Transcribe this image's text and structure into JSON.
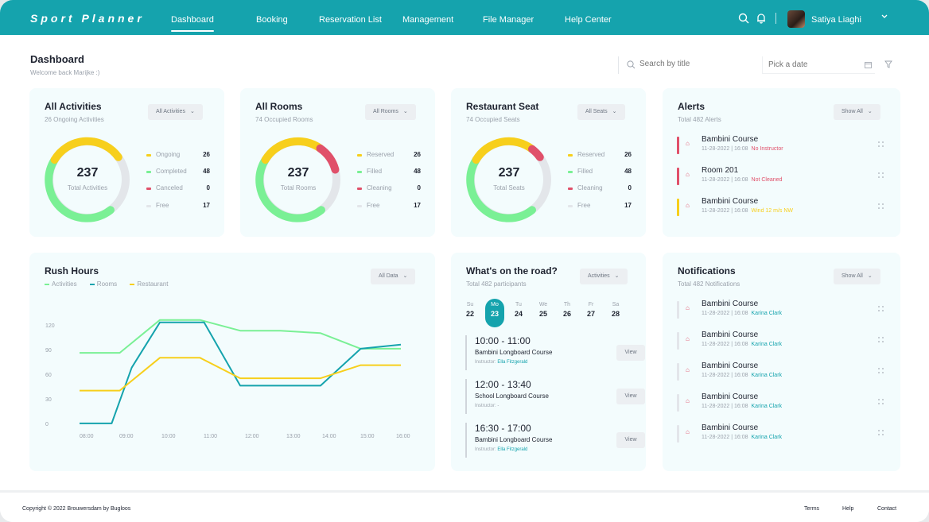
{
  "header": {
    "logo": "Sport Planner",
    "nav": [
      "Dashboard",
      "Booking",
      "Reservation List",
      "Management",
      "File Manager",
      "Help Center"
    ],
    "user_name": "Satiya Liaghi"
  },
  "page": {
    "title": "Dashboard",
    "subtitle": "Welcome back Marijke :)",
    "search_placeholder": "Search by title",
    "date_placeholder": "Pick a date"
  },
  "colors": {
    "brand": "#15a3ad",
    "green": "#7af095",
    "yellow": "#f7cf1c",
    "red": "#e0506a",
    "teal": "#15a3ad"
  },
  "activities": {
    "title": "All Activities",
    "subtitle": "26 Ongoing Activities",
    "dropdown": "All Activities",
    "total": "237",
    "total_label": "Total Activities",
    "legend": [
      {
        "label": "Ongoing",
        "value": "26",
        "color": "#f7cf1c"
      },
      {
        "label": "Completed",
        "value": "48",
        "color": "#7af095"
      },
      {
        "label": "Canceled",
        "value": "0",
        "color": "#e0506a"
      },
      {
        "label": "Free",
        "value": "17",
        "color": "#e3e6ea"
      }
    ]
  },
  "rooms": {
    "title": "All Rooms",
    "subtitle": "74 Occupied Rooms",
    "dropdown": "All Rooms",
    "total": "237",
    "total_label": "Total Rooms",
    "legend": [
      {
        "label": "Reserved",
        "value": "26",
        "color": "#f7cf1c"
      },
      {
        "label": "Filled",
        "value": "48",
        "color": "#7af095"
      },
      {
        "label": "Cleaning",
        "value": "0",
        "color": "#e0506a"
      },
      {
        "label": "Free",
        "value": "17",
        "color": "#e3e6ea"
      }
    ]
  },
  "seats": {
    "title": "Restaurant Seat",
    "subtitle": "74 Occupied Seats",
    "dropdown": "All Seats",
    "total": "237",
    "total_label": "Total Seats",
    "legend": [
      {
        "label": "Reserved",
        "value": "26",
        "color": "#f7cf1c"
      },
      {
        "label": "Filled",
        "value": "48",
        "color": "#7af095"
      },
      {
        "label": "Cleaning",
        "value": "0",
        "color": "#e0506a"
      },
      {
        "label": "Free",
        "value": "17",
        "color": "#e3e6ea"
      }
    ]
  },
  "alerts": {
    "title": "Alerts",
    "subtitle": "Total 482 Alerts",
    "dropdown": "Show All",
    "items": [
      {
        "title": "Bambini Course",
        "date": "11-28-2022 | 16:08",
        "status": "No Instructor",
        "color": "#e0506a"
      },
      {
        "title": "Room 201",
        "date": "11-28-2022 | 16:08",
        "status": "Not Cleaned",
        "color": "#e0506a"
      },
      {
        "title": "Bambini Course",
        "date": "11-28-2022 | 16:08",
        "status": "Wind 12 m/s NW",
        "color": "#f7cf1c"
      }
    ]
  },
  "rush": {
    "title": "Rush Hours",
    "dropdown": "All Data",
    "legend": [
      "Activities",
      "Rooms",
      "Restaurant"
    ]
  },
  "chart_data": {
    "type": "line",
    "title": "Rush Hours",
    "x": [
      "08:00",
      "09:00",
      "10:00",
      "11:00",
      "12:00",
      "13:00",
      "14:00",
      "15:00",
      "16:00"
    ],
    "yticks": [
      "120",
      "90",
      "60",
      "30",
      "0"
    ],
    "ylim": [
      0,
      130
    ],
    "series": [
      {
        "name": "Activities",
        "color": "#7af095",
        "points": [
          [
            7.8,
            88
          ],
          [
            8.8,
            88
          ],
          [
            9.8,
            128
          ],
          [
            10.8,
            128
          ],
          [
            11.8,
            115
          ],
          [
            12.8,
            115
          ],
          [
            13.8,
            112
          ],
          [
            14.8,
            93
          ],
          [
            15.8,
            93
          ]
        ]
      },
      {
        "name": "Rooms",
        "color": "#15a3ad",
        "points": [
          [
            7.8,
            2
          ],
          [
            8.6,
            2
          ],
          [
            9.1,
            70
          ],
          [
            9.8,
            125
          ],
          [
            10.9,
            125
          ],
          [
            11.8,
            48
          ],
          [
            12.8,
            48
          ],
          [
            13.8,
            48
          ],
          [
            14.8,
            93
          ],
          [
            15.8,
            98
          ]
        ]
      },
      {
        "name": "Restaurant",
        "color": "#f7cf1c",
        "points": [
          [
            7.8,
            42
          ],
          [
            8.8,
            42
          ],
          [
            9.8,
            82
          ],
          [
            10.8,
            82
          ],
          [
            11.8,
            57
          ],
          [
            12.8,
            57
          ],
          [
            13.8,
            57
          ],
          [
            14.8,
            73
          ],
          [
            15.8,
            73
          ]
        ]
      }
    ]
  },
  "road": {
    "title": "What's on the road?",
    "subtitle": "Total 482 participants",
    "dropdown": "Activities",
    "days": [
      {
        "name": "Su",
        "num": "22"
      },
      {
        "name": "Mo",
        "num": "23"
      },
      {
        "name": "Tu",
        "num": "24"
      },
      {
        "name": "We",
        "num": "25"
      },
      {
        "name": "Th",
        "num": "26"
      },
      {
        "name": "Fr",
        "num": "27"
      },
      {
        "name": "Sa",
        "num": "28"
      }
    ],
    "events": [
      {
        "time": "10:00 - 11:00",
        "name": "Bambini Longboard Course",
        "instructor_label": "Instructor:",
        "instructor": "Ella Fitzgerald",
        "button": "View"
      },
      {
        "time": "12:00 - 13:40",
        "name": "School Longboard Course",
        "instructor_label": "Instructor:",
        "instructor": "-",
        "button": "View"
      },
      {
        "time": "16:30 - 17:00",
        "name": "Bambini Longboard Course",
        "instructor_label": "Instructor:",
        "instructor": "Ella Fitzgerald",
        "button": "View"
      }
    ]
  },
  "notifications": {
    "title": "Notifications",
    "subtitle": "Total 482 Notifications",
    "dropdown": "Show All",
    "items": [
      {
        "title": "Bambini Course",
        "date": "11-28-2022 | 16:08",
        "person": "Karina Clark"
      },
      {
        "title": "Bambini Course",
        "date": "11-28-2022 | 16:08",
        "person": "Karina Clark"
      },
      {
        "title": "Bambini Course",
        "date": "11-28-2022 | 16:08",
        "person": "Karina Clark"
      },
      {
        "title": "Bambini Course",
        "date": "11-28-2022 | 16:08",
        "person": "Karina Clark"
      },
      {
        "title": "Bambini Course",
        "date": "11-28-2022 | 16:08",
        "person": "Karina Clark"
      }
    ]
  },
  "footer": {
    "copyright": "Copyright © 2022  Brouwersdam by Bugloos",
    "links": [
      "Terms",
      "Help",
      "Contact"
    ]
  }
}
